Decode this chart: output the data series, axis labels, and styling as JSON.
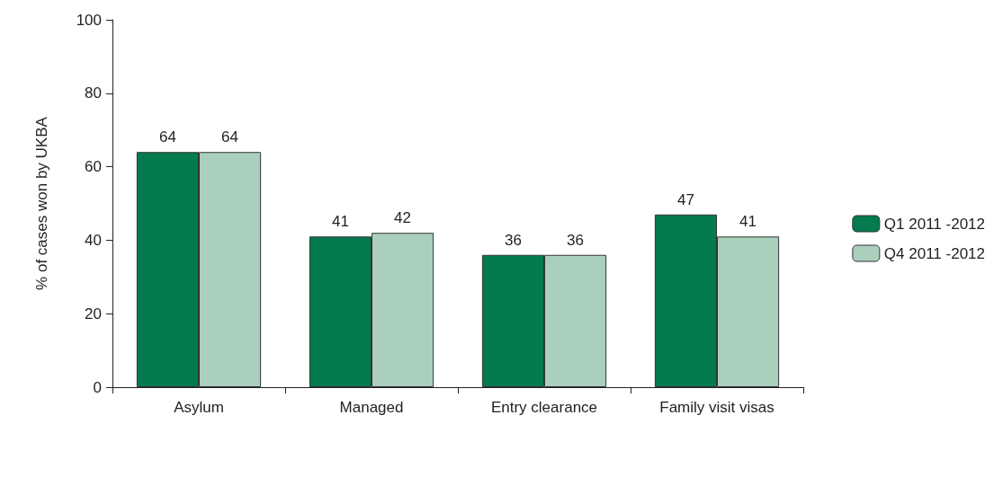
{
  "chart_data": {
    "type": "bar",
    "ylabel": "% of cases won by UKBA",
    "categories": [
      "Asylum",
      "Managed",
      "Entry clearance",
      "Family visit visas"
    ],
    "series": [
      {
        "name": "Q1 2011 -2012",
        "color": "#047a4f",
        "values": [
          64,
          41,
          36,
          47
        ]
      },
      {
        "name": "Q4 2011 -2012",
        "color": "#abcfbd",
        "values": [
          64,
          42,
          36,
          41
        ]
      }
    ],
    "ylim": [
      0,
      100
    ],
    "yticks": [
      0,
      20,
      40,
      60,
      80,
      100
    ],
    "grid": false,
    "legend": "right",
    "data_labels": true
  }
}
